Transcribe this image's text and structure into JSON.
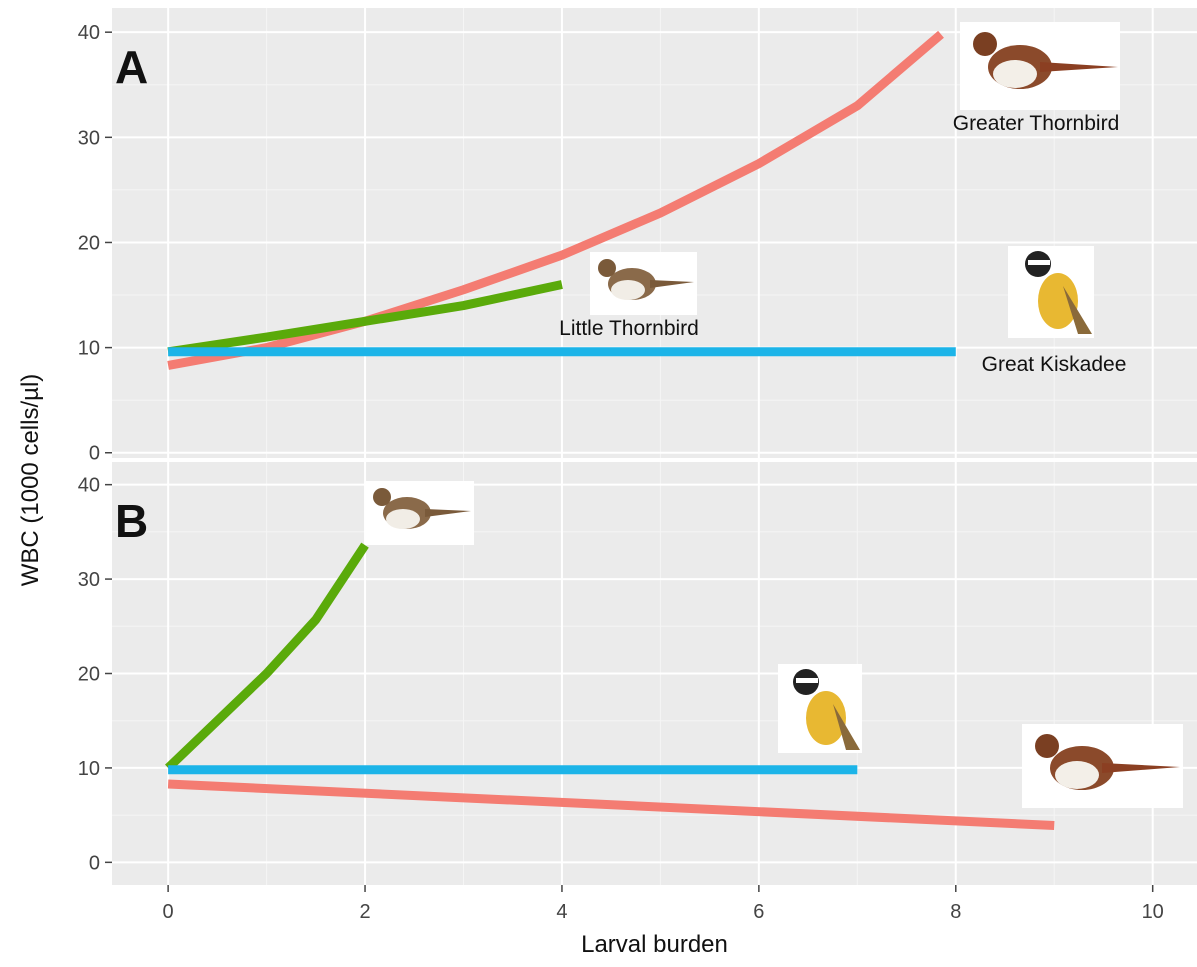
{
  "chart_data": [
    {
      "type": "line",
      "title": "A",
      "ylabel": "WBC (1000 cells/µl)",
      "xlim": [
        -0.57,
        10.45
      ],
      "xticks": [
        0,
        2,
        4,
        6,
        8,
        10
      ],
      "ylim": [
        -0.5,
        42.3
      ],
      "yticks": [
        0,
        10,
        20,
        30,
        40
      ],
      "grid": true,
      "series": [
        {
          "name": "Greater Thornbird",
          "color": "#f47c72",
          "x": [
            0,
            1,
            2,
            3,
            4,
            5,
            6,
            7,
            7.85
          ],
          "values": [
            8.3,
            10,
            12.5,
            15.5,
            18.8,
            22.8,
            27.5,
            33,
            39.8
          ]
        },
        {
          "name": "Little Thornbird",
          "color": "#5aaa0a",
          "x": [
            0,
            1,
            2,
            3,
            4
          ],
          "values": [
            9.6,
            11,
            12.5,
            14,
            16
          ]
        },
        {
          "name": "Great Kiskadee",
          "color": "#1cb4e8",
          "x": [
            0,
            8
          ],
          "values": [
            9.6,
            9.6
          ]
        }
      ]
    },
    {
      "type": "line",
      "title": "B",
      "xlabel": "Larval burden",
      "xlim": [
        -0.57,
        10.45
      ],
      "xticks": [
        0,
        2,
        4,
        6,
        8,
        10
      ],
      "ylim": [
        -2.4,
        42.4
      ],
      "yticks": [
        0,
        10,
        20,
        30,
        40
      ],
      "grid": true,
      "series": [
        {
          "color": "#5aaa0a",
          "x": [
            0,
            0.5,
            1,
            1.5,
            2
          ],
          "values": [
            10,
            15,
            20,
            25.7,
            33.6
          ]
        },
        {
          "color": "#1cb4e8",
          "x": [
            0,
            7
          ],
          "values": [
            9.8,
            9.8
          ]
        },
        {
          "color": "#f47c72",
          "x": [
            0,
            9
          ],
          "values": [
            8.3,
            3.9
          ]
        }
      ]
    }
  ]
}
